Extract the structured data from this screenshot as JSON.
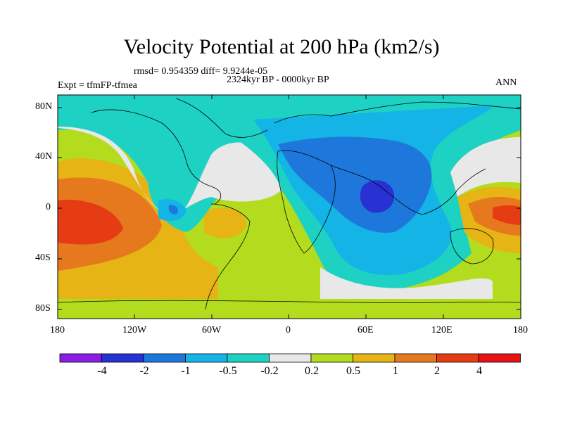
{
  "title": "Velocity Potential at 200 hPa (km2/s)",
  "stats_line": "rmsd= 0.954359 diff= 9.9244e-05",
  "period_line": "2324kyr BP - 0000kyr BP",
  "experiment_line": "Expt = tfmFP-tfmea",
  "season_label": "ANN",
  "lat_ticks": [
    "80N",
    "40N",
    "0",
    "40S",
    "80S"
  ],
  "lon_ticks": [
    "180",
    "120W",
    "60W",
    "0",
    "60E",
    "120E",
    "180"
  ],
  "colorbar": {
    "labels": [
      "-4",
      "-2",
      "-1",
      "-0.5",
      "-0.2",
      "0.2",
      "0.5",
      "1",
      "2",
      "4"
    ],
    "colors": [
      "#8a1ee6",
      "#2832d2",
      "#1e78dc",
      "#14b4e6",
      "#1ed2c3",
      "#e8e8e8",
      "#b4dc1e",
      "#e6b414",
      "#e6781e",
      "#e63c14",
      "#e61414"
    ]
  }
}
